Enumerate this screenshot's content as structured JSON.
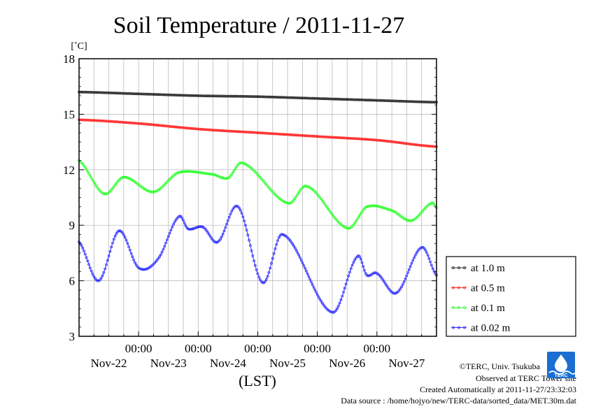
{
  "colors": {
    "series_1": "#333333",
    "series_2": "#ff3030",
    "series_3": "#33ff33",
    "series_4": "#3333ff",
    "logo": "#1a6fd0"
  },
  "footer": {
    "copyright": "©TERC, Univ. Tsukuba",
    "observed": "Observed at TERC Tower site",
    "created": "Created Automatically at 2011-11-27/23:32:03",
    "source": "Data source : /home/hojyo/new/TERC-data/sorted_data/MET.30m.dat"
  },
  "logo": {
    "icon": "terc-logo-icon",
    "text": "TERC"
  },
  "chart_data": {
    "type": "line",
    "title": "Soil Temperature / 2011-11-27",
    "ylabel": "[˚C]",
    "xlabel": "(LST)",
    "ylim": [
      3,
      18
    ],
    "yticks": [
      3,
      6,
      9,
      12,
      15,
      18
    ],
    "xlim": [
      0,
      6
    ],
    "xunit": "days",
    "xticks": [
      {
        "time": "00:00",
        "date": "Nov-23",
        "x": 1
      },
      {
        "time": "00:00",
        "date": "Nov-24",
        "x": 2
      },
      {
        "time": "00:00",
        "date": "Nov-25",
        "x": 3
      },
      {
        "time": "00:00",
        "date": "Nov-26",
        "x": 4
      },
      {
        "time": "00:00",
        "date": "Nov-27",
        "x": 5
      }
    ],
    "date_labels": [
      {
        "label": "Nov-22",
        "x": 0.5
      },
      {
        "label": "Nov-23",
        "x": 1.5
      },
      {
        "label": "Nov-24",
        "x": 2.5
      },
      {
        "label": "Nov-25",
        "x": 3.5
      },
      {
        "label": "Nov-26",
        "x": 4.5
      },
      {
        "label": "Nov-27",
        "x": 5.5
      }
    ],
    "grid": true,
    "legend_position": "right",
    "series": [
      {
        "name": "at 1.0 m",
        "color": "#333333",
        "x": [
          0,
          1,
          2,
          3,
          4,
          5,
          6
        ],
        "y": [
          16.2,
          16.1,
          16.0,
          15.95,
          15.85,
          15.75,
          15.65
        ]
      },
      {
        "name": "at 0.5 m",
        "color": "#ff3030",
        "x": [
          0,
          1,
          2,
          3,
          4,
          5,
          6
        ],
        "y": [
          14.7,
          14.5,
          14.2,
          14.0,
          13.8,
          13.6,
          13.25
        ]
      },
      {
        "name": "at 0.1 m",
        "color": "#33ff33",
        "x": [
          0,
          0.42,
          0.75,
          1.25,
          1.67,
          2.25,
          2.5,
          2.75,
          3.5,
          3.83,
          4.5,
          4.83,
          5.25,
          5.58,
          5.92,
          6.0
        ],
        "y": [
          12.5,
          10.7,
          11.6,
          10.8,
          11.85,
          11.75,
          11.55,
          12.35,
          10.2,
          11.1,
          8.85,
          10.0,
          9.8,
          9.25,
          10.2,
          9.95
        ]
      },
      {
        "name": "at 0.02 m",
        "color": "#3333ff",
        "x": [
          0,
          0.33,
          0.67,
          1.0,
          1.33,
          1.67,
          1.83,
          2.08,
          2.33,
          2.67,
          3.08,
          3.42,
          4.25,
          4.67,
          4.83,
          5.0,
          5.33,
          5.75,
          6.0
        ],
        "y": [
          8.1,
          6.0,
          8.7,
          6.7,
          7.2,
          9.45,
          8.8,
          8.9,
          8.1,
          10.0,
          5.9,
          8.5,
          4.3,
          7.3,
          6.3,
          6.4,
          5.35,
          7.8,
          6.3
        ]
      }
    ]
  }
}
